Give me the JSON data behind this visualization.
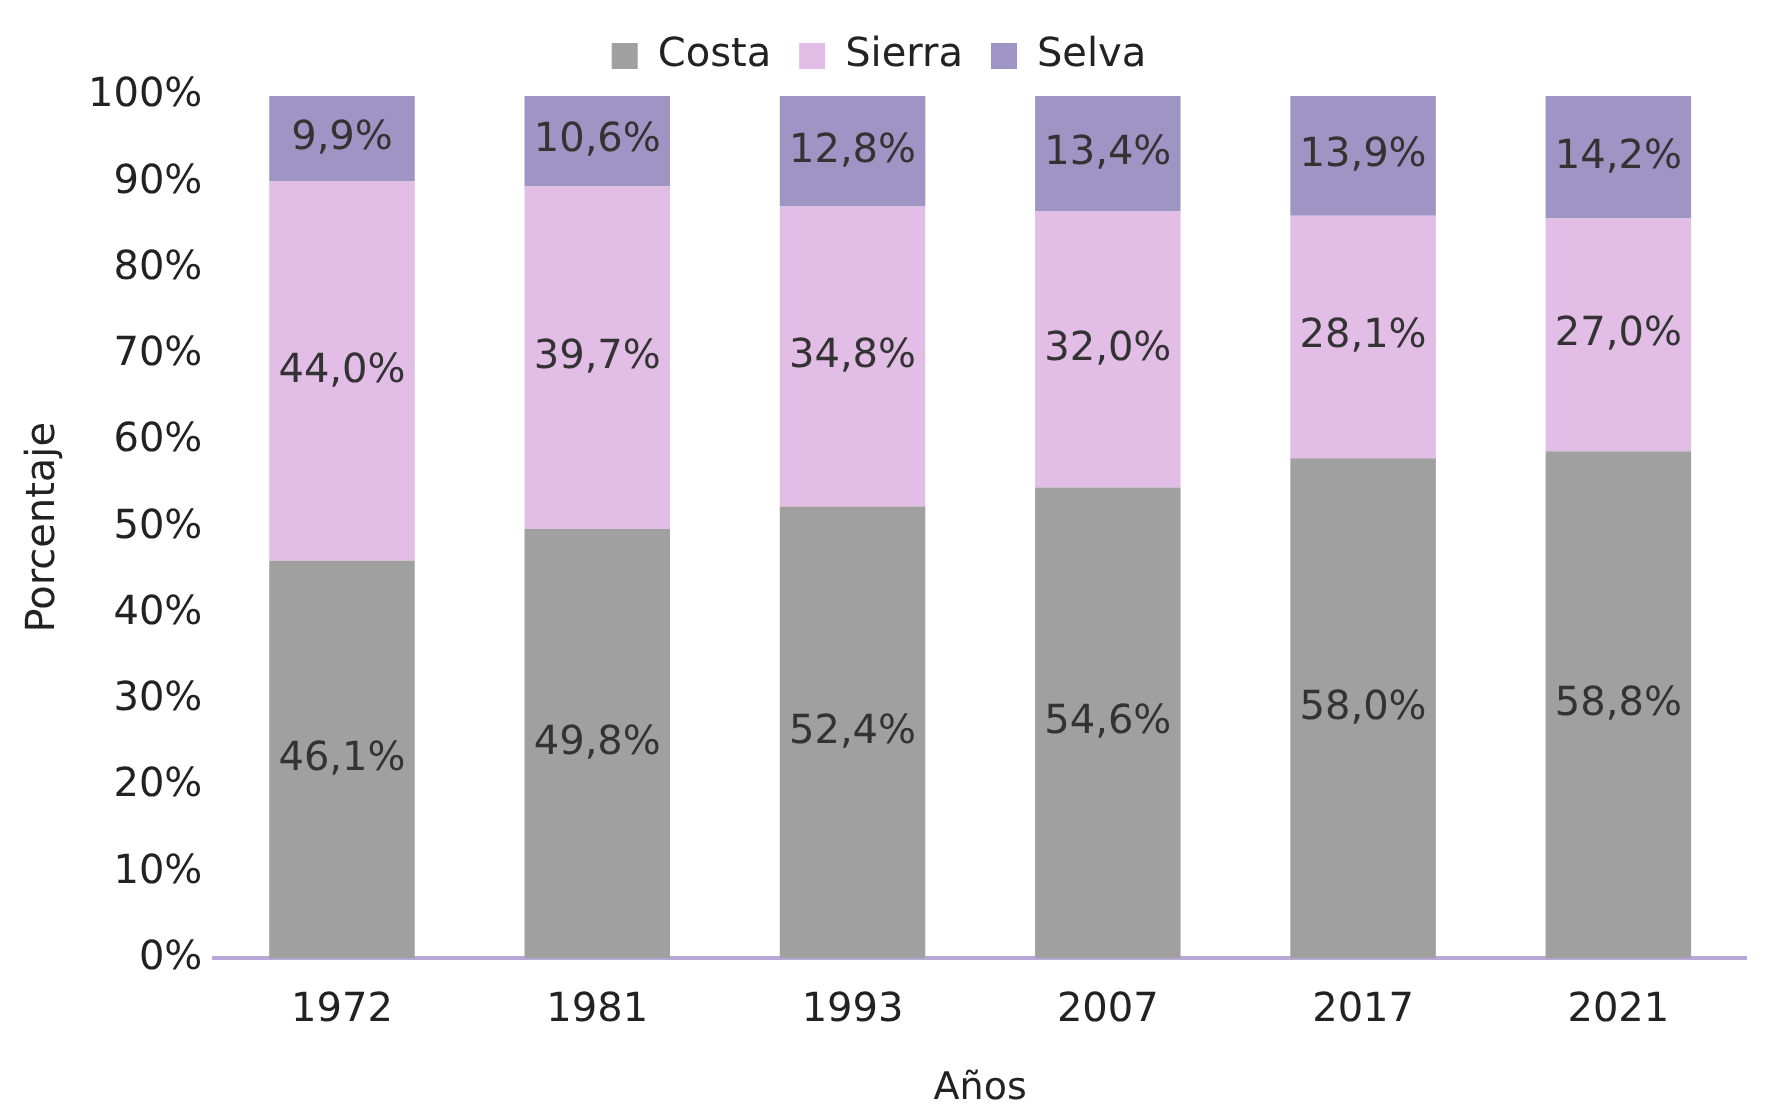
{
  "chart_data": {
    "type": "bar",
    "stacked": true,
    "xlabel": "Años",
    "ylabel": "Porcentaje",
    "legend": "top",
    "categories": [
      "1972",
      "1981",
      "1993",
      "2007",
      "2017",
      "2021"
    ],
    "ylim": [
      0,
      100
    ],
    "yticks": [
      {
        "value": 0,
        "label": "0%"
      },
      {
        "value": 10,
        "label": "10%"
      },
      {
        "value": 20,
        "label": "20%"
      },
      {
        "value": 30,
        "label": "30%"
      },
      {
        "value": 40,
        "label": "40%"
      },
      {
        "value": 50,
        "label": "50%"
      },
      {
        "value": 60,
        "label": "60%"
      },
      {
        "value": 70,
        "label": "70%"
      },
      {
        "value": 80,
        "label": "80%"
      },
      {
        "value": 90,
        "label": "90%"
      },
      {
        "value": 100,
        "label": "100%"
      }
    ],
    "grid": false,
    "series": [
      {
        "name": "Costa",
        "color": "#a0a0a0",
        "values": [
          46.1,
          49.8,
          52.4,
          54.6,
          58.0,
          58.8
        ],
        "value_labels": [
          "46,1%",
          "49,8%",
          "52,4%",
          "54,6%",
          "58,0%",
          "58,8%"
        ]
      },
      {
        "name": "Sierra",
        "color": "#e2bde6",
        "values": [
          44.0,
          39.7,
          34.8,
          32.0,
          28.1,
          27.0
        ],
        "value_labels": [
          "44,0%",
          "39,7%",
          "34,8%",
          "32,0%",
          "28,1%",
          "27,0%"
        ]
      },
      {
        "name": "Selva",
        "color": "#9f95c4",
        "values": [
          9.9,
          10.6,
          12.8,
          13.4,
          13.9,
          14.2
        ],
        "value_labels": [
          "9,9%",
          "10,6%",
          "12,8%",
          "13,4%",
          "13,9%",
          "14,2%"
        ]
      }
    ]
  }
}
